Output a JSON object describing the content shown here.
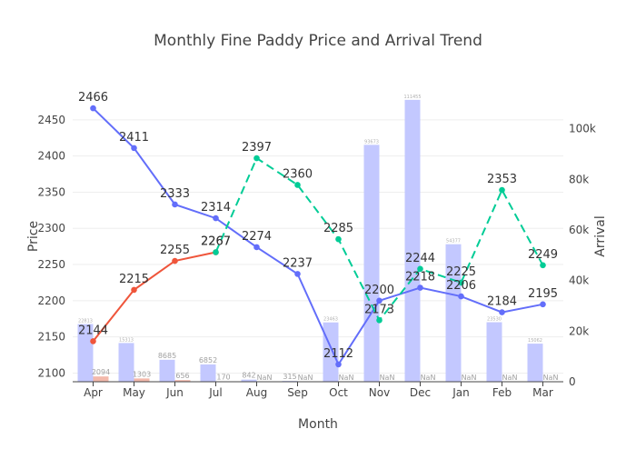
{
  "chart_data": {
    "type": "bar+line",
    "title": "Monthly Fine Paddy Price and Arrival Trend",
    "xlabel": "Month",
    "ylabel": "Price",
    "y2label": "Arrival",
    "categories": [
      "Apr",
      "May",
      "Jun",
      "Jul",
      "Aug",
      "Sep",
      "Oct",
      "Nov",
      "Dec",
      "Jan",
      "Feb",
      "Mar"
    ],
    "ylim": [
      2088,
      2490
    ],
    "y_ticks": [
      2100,
      2150,
      2200,
      2250,
      2300,
      2350,
      2400,
      2450
    ],
    "y2lim": [
      0,
      115000
    ],
    "y2_ticks": [
      0,
      20000,
      40000,
      60000,
      80000,
      100000
    ],
    "y2_tick_labels": [
      "0",
      "20k",
      "40k",
      "60k",
      "80k",
      "100k"
    ],
    "colors": {
      "arrival_a": "#c3c8ff",
      "arrival_b": "#f3b9ab",
      "price_a": "#636efa",
      "price_b": "#ef553b",
      "price_c": "#00cc96",
      "axis": "#444444",
      "grid": "#eeeeee"
    },
    "bar_series": [
      {
        "color_key": "arrival_a",
        "values": [
          22813,
          15313,
          8685,
          6852,
          842,
          315,
          23463,
          93673,
          111455,
          54377,
          23530,
          15062
        ],
        "labels": [
          "22813",
          "15313",
          "8685",
          "6852",
          "842",
          "315",
          "23463",
          "93673",
          "111455",
          "54377",
          "23530",
          "15062"
        ]
      },
      {
        "color_key": "arrival_b",
        "values": [
          2094,
          1303,
          656,
          170,
          null,
          null,
          null,
          null,
          null,
          null,
          null,
          null
        ],
        "labels": [
          "2094",
          "1303",
          "656",
          "170",
          "NaN",
          "NaN",
          "NaN",
          "NaN",
          "NaN",
          "NaN",
          "NaN",
          "NaN"
        ]
      }
    ],
    "line_series": [
      {
        "color_key": "price_a",
        "dash": false,
        "values": [
          2466,
          2411,
          2333,
          2314,
          2274,
          2237,
          2112,
          2200,
          2218,
          2206,
          2184,
          2195
        ]
      },
      {
        "color_key": "price_b",
        "dash": false,
        "values": [
          2144,
          2215,
          2255,
          2267,
          null,
          null,
          null,
          null,
          null,
          null,
          null,
          null
        ]
      },
      {
        "color_key": "price_c",
        "dash": true,
        "values": [
          null,
          null,
          null,
          2267,
          2397,
          2360,
          2285,
          2173,
          2244,
          2225,
          2353,
          2249
        ]
      }
    ]
  }
}
